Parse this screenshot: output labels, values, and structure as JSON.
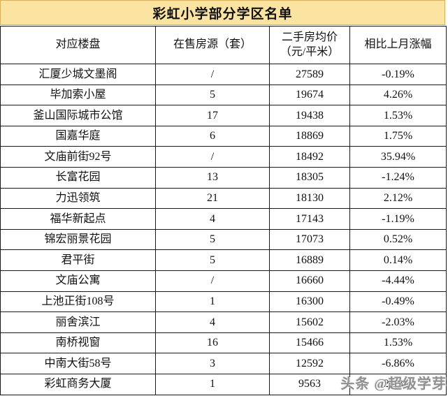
{
  "title": "彩虹小学部分学区名单",
  "watermark": "头条 @超级学芽",
  "colors": {
    "title_background": "#FBE3A2",
    "title_border": "#DDAE54",
    "grid_line": "#1A1A1A",
    "watermark_gray": "#8F8F8F"
  },
  "chart_data": {
    "type": "table",
    "title": "彩虹小学部分学区名单",
    "columns": [
      "对应楼盘",
      "在售房源（套）",
      "二手房均价（元/平米）",
      "相比上月涨幅"
    ],
    "columns_display": [
      "对应楼盘",
      "在售房源（套）",
      "二手房均价\n（元/平米）",
      "相比上月涨幅"
    ],
    "rows": [
      [
        "汇厦少城文墨阁",
        "/",
        "27589",
        "-0.19%"
      ],
      [
        "毕加索小屋",
        "5",
        "19674",
        "4.26%"
      ],
      [
        "釜山国际城市公馆",
        "17",
        "19438",
        "1.53%"
      ],
      [
        "国嘉华庭",
        "6",
        "18869",
        "1.75%"
      ],
      [
        "文庙前街92号",
        "/",
        "18492",
        "35.94%"
      ],
      [
        "长富花园",
        "13",
        "18305",
        "-1.24%"
      ],
      [
        "力迅领筑",
        "21",
        "18130",
        "2.12%"
      ],
      [
        "福华新起点",
        "4",
        "17143",
        "-1.19%"
      ],
      [
        "锦宏丽景花园",
        "5",
        "17073",
        "0.52%"
      ],
      [
        "君平街",
        "5",
        "16889",
        "0.14%"
      ],
      [
        "文庙公寓",
        "/",
        "16660",
        "-4.44%"
      ],
      [
        "上池正街108号",
        "1",
        "16300",
        "-0.49%"
      ],
      [
        "丽舍滨江",
        "4",
        "15602",
        "-2.03%"
      ],
      [
        "南桥视窗",
        "16",
        "15466",
        "1.53%"
      ],
      [
        "中南大街58号",
        "3",
        "12592",
        "-6.86%"
      ],
      [
        "彩虹商务大厦",
        "1",
        "9563",
        "2.33%"
      ]
    ]
  }
}
